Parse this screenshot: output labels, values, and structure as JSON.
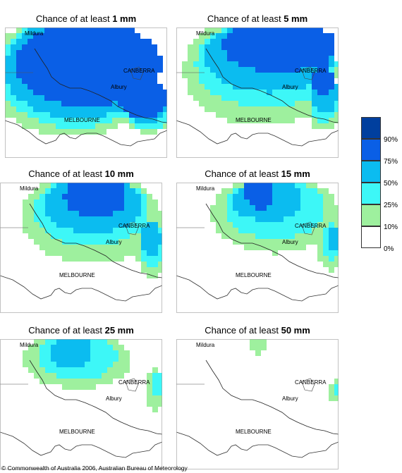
{
  "panels": [
    {
      "title_prefix": "Chance of at least ",
      "amount": "1 mm",
      "key": "p1"
    },
    {
      "title_prefix": "Chance of at least ",
      "amount": "5 mm",
      "key": "p5"
    },
    {
      "title_prefix": "Chance of at least ",
      "amount": "10 mm",
      "key": "p10"
    },
    {
      "title_prefix": "Chance of at least ",
      "amount": "15 mm",
      "key": "p15"
    },
    {
      "title_prefix": "Chance of at least ",
      "amount": "25 mm",
      "key": "p25"
    },
    {
      "title_prefix": "Chance of at least ",
      "amount": "50 mm",
      "key": "p50"
    }
  ],
  "places": {
    "mildura": "Mildura",
    "canberra": "CANBERRA",
    "albury": "Albury",
    "melbourne": "MELBOURNE"
  },
  "legend": {
    "labels": [
      "90%",
      "75%",
      "50%",
      "25%",
      "10%",
      "0%"
    ],
    "classes": [
      {
        "range": "90-100%",
        "color": "#003f9e"
      },
      {
        "range": "75-90%",
        "color": "#0a5fe6"
      },
      {
        "range": "50-75%",
        "color": "#0bbcf0"
      },
      {
        "range": "25-50%",
        "color": "#3df7f7"
      },
      {
        "range": "10-25%",
        "color": "#9ef09e"
      },
      {
        "range": "0-10%",
        "color": "#ffffff"
      }
    ]
  },
  "copyright": "© Commonwealth of Australia 2006, Australian Bureau of Meteorology"
}
